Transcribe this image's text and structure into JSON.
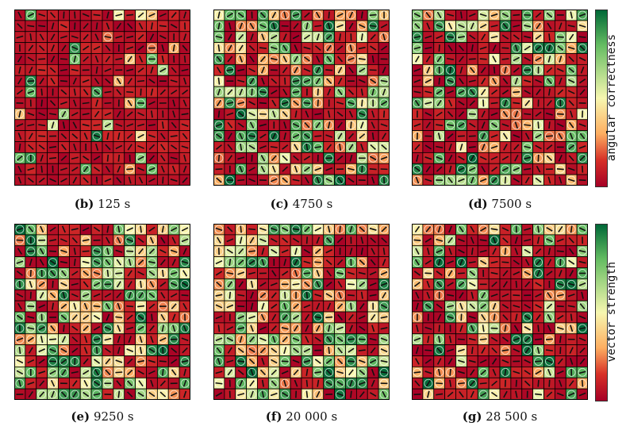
{
  "chart_data": [
    {
      "type": "heatmap",
      "id": "b",
      "panel_label": "(b)",
      "time_label": "125 s",
      "grid": [
        16,
        16
      ],
      "colorbar": "angular correctness",
      "seed": 11,
      "density": 0.08
    },
    {
      "type": "heatmap",
      "id": "c",
      "panel_label": "(c)",
      "time_label": "4750 s",
      "grid": [
        16,
        16
      ],
      "colorbar": "angular correctness",
      "seed": 23,
      "density": 0.55
    },
    {
      "type": "heatmap",
      "id": "d",
      "panel_label": "(d)",
      "time_label": "7500 s",
      "grid": [
        16,
        16
      ],
      "colorbar": "angular correctness",
      "seed": 37,
      "density": 0.45
    },
    {
      "type": "heatmap",
      "id": "e",
      "panel_label": "(e)",
      "time_label": "9250 s",
      "grid": [
        16,
        16
      ],
      "colorbar": "vector strength",
      "seed": 41,
      "density": 0.6
    },
    {
      "type": "heatmap",
      "id": "f",
      "panel_label": "(f)",
      "time_label": "20 000 s",
      "grid": [
        16,
        16
      ],
      "colorbar": "vector strength",
      "seed": 53,
      "density": 0.6
    },
    {
      "type": "heatmap",
      "id": "g",
      "panel_label": "(g)",
      "time_label": "28 500 s",
      "grid": [
        16,
        16
      ],
      "colorbar": "vector strength",
      "seed": 67,
      "density": 0.4
    }
  ],
  "colorbars": {
    "top_label": "angular correctness",
    "bottom_label": "vector strength"
  },
  "colors": {
    "low": "#a50026",
    "mid": "#f7f7b0",
    "high": "#006837"
  }
}
